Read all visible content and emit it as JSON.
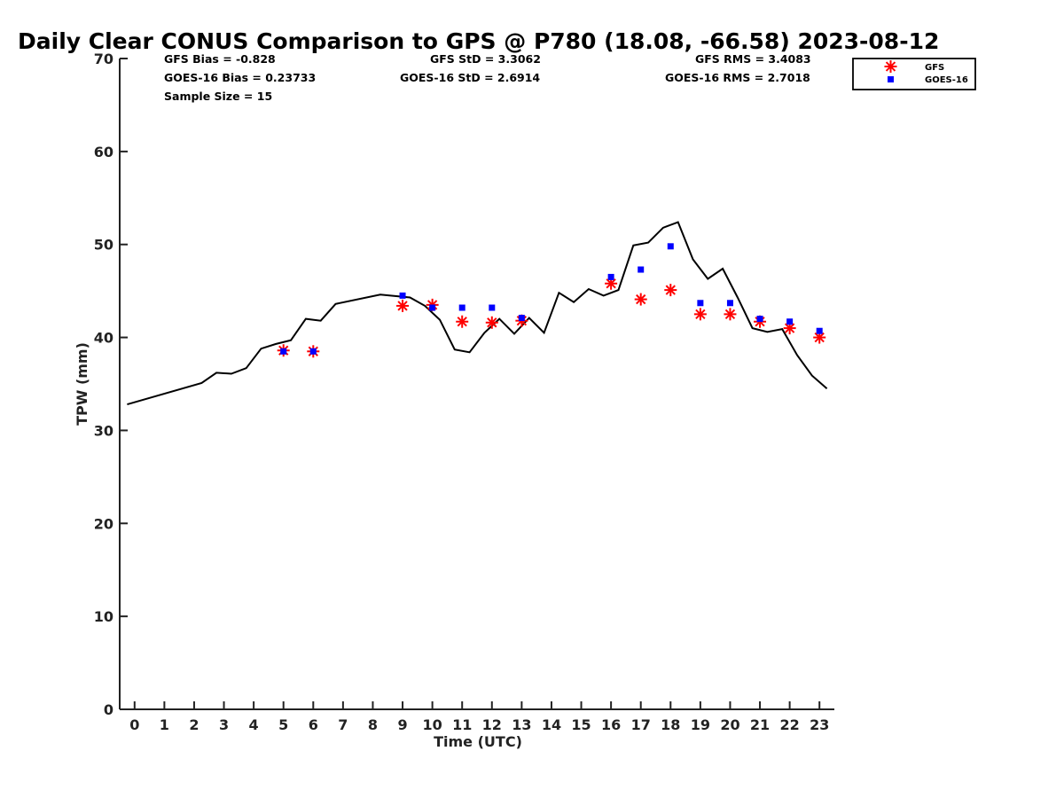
{
  "chart_data": {
    "type": "scatter",
    "title": "Daily Clear CONUS Comparison to GPS @ P780 (18.08, -66.58) 2023-08-12",
    "xlabel": "Time (UTC)",
    "ylabel": "TPW (mm)",
    "xlim": [
      -0.5,
      23.5
    ],
    "ylim": [
      0,
      70
    ],
    "x_ticks": [
      0,
      1,
      2,
      3,
      4,
      5,
      6,
      7,
      8,
      9,
      10,
      11,
      12,
      13,
      14,
      15,
      16,
      17,
      18,
      19,
      20,
      21,
      22,
      23
    ],
    "y_ticks": [
      0,
      10,
      20,
      30,
      40,
      50,
      60,
      70
    ],
    "grid": false,
    "legend_position": "top-right",
    "stats": {
      "gfs_bias": "GFS Bias = -0.828",
      "goes_bias": "GOES-16 Bias = 0.23733",
      "sample_size": "Sample Size = 15",
      "gfs_std": "GFS StD = 3.3062",
      "goes_std": "GOES-16 StD = 2.6914",
      "gfs_rms": "GFS RMS = 3.4083",
      "goes_rms": "GOES-16 RMS = 2.7018"
    },
    "series": [
      {
        "kind": "line",
        "color": "#000000",
        "points": [
          [
            -0.25,
            32.8
          ],
          [
            2.25,
            35.1
          ],
          [
            2.75,
            36.2
          ],
          [
            3.25,
            36.1
          ],
          [
            3.75,
            36.7
          ],
          [
            4.25,
            38.8
          ],
          [
            4.75,
            39.3
          ],
          [
            5.25,
            39.7
          ],
          [
            5.75,
            42.0
          ],
          [
            6.25,
            41.8
          ],
          [
            6.75,
            43.6
          ],
          [
            8.25,
            44.6
          ],
          [
            9.25,
            44.3
          ],
          [
            9.75,
            43.4
          ],
          [
            10.25,
            41.9
          ],
          [
            10.75,
            38.7
          ],
          [
            11.25,
            38.4
          ],
          [
            11.75,
            40.5
          ],
          [
            12.25,
            42.0
          ],
          [
            12.75,
            40.4
          ],
          [
            13.25,
            42.1
          ],
          [
            13.75,
            40.5
          ],
          [
            14.25,
            44.8
          ],
          [
            14.75,
            43.8
          ],
          [
            15.25,
            45.2
          ],
          [
            15.75,
            44.5
          ],
          [
            16.25,
            45.1
          ],
          [
            16.75,
            49.9
          ],
          [
            17.25,
            50.2
          ],
          [
            17.75,
            51.8
          ],
          [
            18.25,
            52.4
          ],
          [
            18.75,
            48.4
          ],
          [
            19.25,
            46.3
          ],
          [
            19.75,
            47.4
          ],
          [
            20.25,
            44.3
          ],
          [
            20.75,
            41.0
          ],
          [
            21.25,
            40.6
          ],
          [
            21.75,
            40.9
          ],
          [
            22.25,
            38.1
          ],
          [
            22.75,
            35.9
          ],
          [
            23.25,
            34.5
          ]
        ]
      },
      {
        "name": "GFS",
        "kind": "asterisk",
        "color": "#ff0000",
        "points": [
          [
            5,
            38.6
          ],
          [
            6,
            38.5
          ],
          [
            9,
            43.4
          ],
          [
            10,
            43.5
          ],
          [
            11,
            41.7
          ],
          [
            12,
            41.6
          ],
          [
            13,
            41.8
          ],
          [
            16,
            45.8
          ],
          [
            17,
            44.1
          ],
          [
            18,
            45.1
          ],
          [
            19,
            42.5
          ],
          [
            20,
            42.5
          ],
          [
            21,
            41.7
          ],
          [
            22,
            41.0
          ],
          [
            23,
            40.0
          ]
        ]
      },
      {
        "name": "GOES-16",
        "kind": "square",
        "color": "#0000ff",
        "points": [
          [
            5,
            38.5
          ],
          [
            6,
            38.5
          ],
          [
            9,
            44.5
          ],
          [
            10,
            43.2
          ],
          [
            11,
            43.2
          ],
          [
            12,
            43.2
          ],
          [
            13,
            42.1
          ],
          [
            16,
            46.5
          ],
          [
            17,
            47.3
          ],
          [
            18,
            49.8
          ],
          [
            19,
            43.7
          ],
          [
            20,
            43.7
          ],
          [
            21,
            42.0
          ],
          [
            22,
            41.7
          ],
          [
            23,
            40.7
          ]
        ]
      }
    ]
  }
}
